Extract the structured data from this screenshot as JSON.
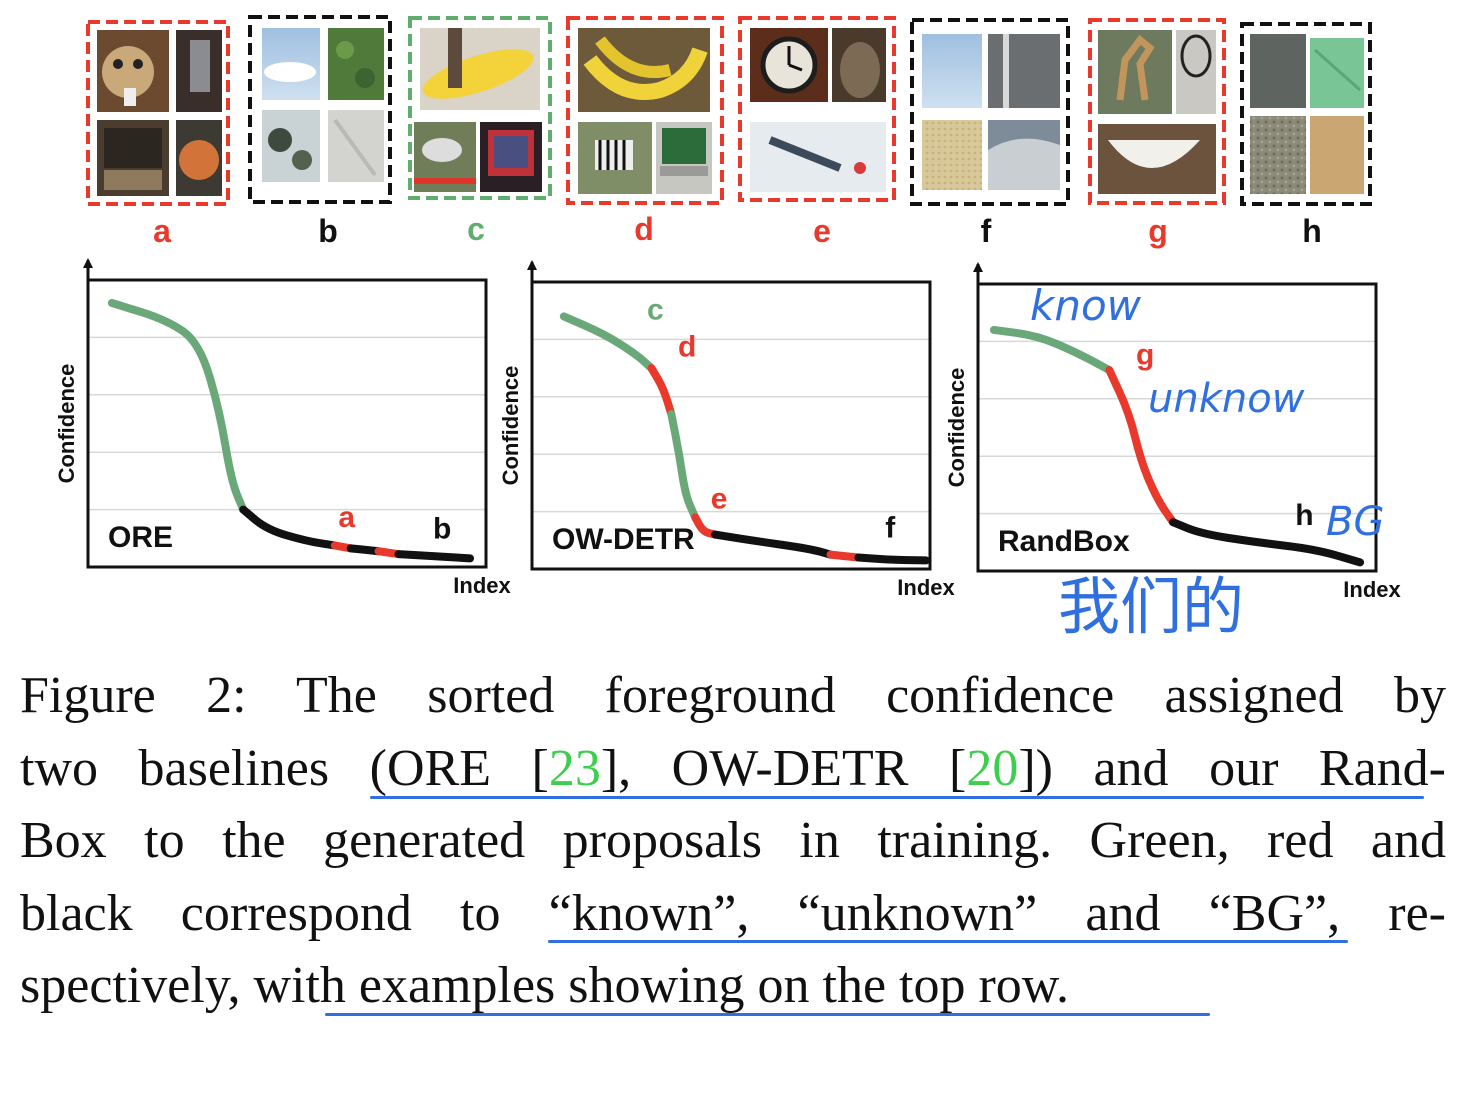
{
  "examples": [
    {
      "letter": "a",
      "category": "unknown",
      "color": "#e8392c"
    },
    {
      "letter": "b",
      "category": "BG",
      "color": "#111111"
    },
    {
      "letter": "c",
      "category": "known",
      "color": "#5fae6e"
    },
    {
      "letter": "d",
      "category": "unknown",
      "color": "#e8392c"
    },
    {
      "letter": "e",
      "category": "unknown",
      "color": "#e8392c"
    },
    {
      "letter": "f",
      "category": "BG",
      "color": "#111111"
    },
    {
      "letter": "g",
      "category": "unknown",
      "color": "#e8392c"
    },
    {
      "letter": "h",
      "category": "BG",
      "color": "#111111"
    }
  ],
  "colors": {
    "known": "#6aa87a",
    "unknown": "#e8392c",
    "bg": "#111111",
    "annotation": "#2f6fe0",
    "citation": "#3ccf4e"
  },
  "chart_data": [
    {
      "type": "line",
      "title": "ORE",
      "xlabel": "Index",
      "ylabel": "Confidence",
      "grid": true,
      "xlim": [
        0,
        100
      ],
      "ylim": [
        0,
        100
      ],
      "segments": [
        {
          "category": "known",
          "points": [
            [
              6,
              92
            ],
            [
              20,
              86
            ],
            [
              28,
              78
            ],
            [
              33,
              55
            ],
            [
              36,
              30
            ],
            [
              39,
              20
            ]
          ]
        },
        {
          "category": "BG",
          "points": [
            [
              39,
              20
            ],
            [
              45,
              13
            ],
            [
              55,
              9
            ],
            [
              62,
              7.5
            ]
          ]
        },
        {
          "category": "unknown",
          "points": [
            [
              62,
              7.5
            ],
            [
              66,
              6.5
            ]
          ]
        },
        {
          "category": "BG",
          "points": [
            [
              66,
              6.5
            ],
            [
              73,
              5.5
            ]
          ]
        },
        {
          "category": "unknown",
          "points": [
            [
              73,
              5.5
            ],
            [
              78,
              4.5
            ]
          ]
        },
        {
          "category": "BG",
          "points": [
            [
              78,
              4.5
            ],
            [
              90,
              3.5
            ],
            [
              96,
              3
            ]
          ]
        }
      ],
      "labels": [
        {
          "text": "a",
          "x": 65,
          "y": 14,
          "category": "unknown"
        },
        {
          "text": "b",
          "x": 89,
          "y": 10,
          "category": "BG"
        }
      ]
    },
    {
      "type": "line",
      "title": "OW-DETR",
      "xlabel": "Index",
      "ylabel": "Confidence",
      "grid": true,
      "xlim": [
        0,
        100
      ],
      "ylim": [
        0,
        100
      ],
      "segments": [
        {
          "category": "known",
          "points": [
            [
              8,
              88
            ],
            [
              18,
              82
            ],
            [
              26,
              75
            ],
            [
              30,
              70
            ]
          ]
        },
        {
          "category": "unknown",
          "points": [
            [
              30,
              70
            ],
            [
              33,
              63
            ],
            [
              35,
              54
            ]
          ]
        },
        {
          "category": "known",
          "points": [
            [
              35,
              54
            ],
            [
              37,
              40
            ],
            [
              38.5,
              26
            ],
            [
              41,
              18
            ]
          ]
        },
        {
          "category": "unknown",
          "points": [
            [
              41,
              18
            ],
            [
              43,
              13
            ],
            [
              46,
              12
            ]
          ]
        },
        {
          "category": "BG",
          "points": [
            [
              46,
              12
            ],
            [
              55,
              10
            ],
            [
              70,
              7
            ],
            [
              75,
              5
            ]
          ]
        },
        {
          "category": "unknown",
          "points": [
            [
              75,
              5
            ],
            [
              82,
              4
            ]
          ]
        },
        {
          "category": "BG",
          "points": [
            [
              82,
              4
            ],
            [
              90,
              3.2
            ],
            [
              99,
              3
            ]
          ]
        }
      ],
      "labels": [
        {
          "text": "c",
          "x": 31,
          "y": 87,
          "category": "known"
        },
        {
          "text": "d",
          "x": 39,
          "y": 74,
          "category": "unknown"
        },
        {
          "text": "e",
          "x": 47,
          "y": 21,
          "category": "unknown"
        },
        {
          "text": "f",
          "x": 90,
          "y": 11,
          "category": "BG"
        }
      ]
    },
    {
      "type": "line",
      "title": "RandBox",
      "xlabel": "Index",
      "ylabel": "Confidence",
      "grid": true,
      "xlim": [
        0,
        100
      ],
      "ylim": [
        0,
        100
      ],
      "segments": [
        {
          "category": "known",
          "points": [
            [
              4,
              84
            ],
            [
              15,
              82
            ],
            [
              25,
              76
            ],
            [
              33,
              70
            ]
          ]
        },
        {
          "category": "unknown",
          "points": [
            [
              33,
              70
            ],
            [
              38,
              55
            ],
            [
              41,
              38
            ],
            [
              45,
              25
            ],
            [
              49,
              17
            ]
          ]
        },
        {
          "category": "BG",
          "points": [
            [
              49,
              17
            ],
            [
              56,
              13
            ],
            [
              70,
              10
            ],
            [
              85,
              7.5
            ],
            [
              96,
              3
            ]
          ]
        }
      ],
      "labels": [
        {
          "text": "g",
          "x": 42,
          "y": 72,
          "category": "unknown"
        },
        {
          "text": "h",
          "x": 82,
          "y": 16,
          "category": "BG"
        }
      ]
    }
  ],
  "handwriting": [
    "know",
    "unknow",
    "BG",
    "我们的"
  ],
  "caption": {
    "line1": "Figure 2:  The sorted foreground confidence assigned by",
    "line2_a": "two baselines (ORE [",
    "cite1": "23",
    "line2_b": "], OW-DETR [",
    "cite2": "20",
    "line2_c": "]) and our Rand-",
    "line3": "Box to the generated proposals in training. Green, red and",
    "line4": "black correspond to “known”, “unknown” and “BG”, re-",
    "line5": "spectively, with examples showing on the top row."
  }
}
